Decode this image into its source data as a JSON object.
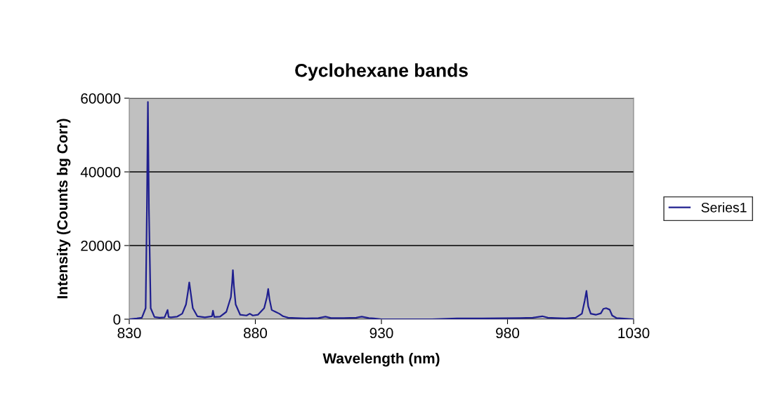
{
  "chart_data": {
    "type": "line",
    "title": "Cyclohexane bands",
    "xlabel": "Wavelength (nm)",
    "ylabel": "Intensity (Counts bg Corr)",
    "xlim": [
      830,
      1030
    ],
    "xticks": [
      830,
      880,
      930,
      980,
      1030
    ],
    "ylim": [
      0,
      60000
    ],
    "yticks": [
      0,
      20000,
      40000,
      60000
    ],
    "grid": "y",
    "legend": "right",
    "marker": "none",
    "line_style": "solid",
    "series": [
      {
        "name": "Series1",
        "color": "#1f1f8f",
        "x": [
          830,
          833,
          835,
          836.5,
          837.0,
          837.4,
          837.8,
          838.5,
          840,
          842,
          844,
          845.2,
          845.6,
          846.5,
          849,
          851,
          852.5,
          853.3,
          853.8,
          854.3,
          855.2,
          857,
          860,
          862.8,
          863.2,
          863.7,
          866,
          868.5,
          870.3,
          870.8,
          871.1,
          871.5,
          872.2,
          874,
          876.5,
          877.8,
          879,
          881,
          883.5,
          884.6,
          885.1,
          885.6,
          886.5,
          888,
          889.5,
          891,
          893,
          896,
          900,
          905,
          907.8,
          910,
          915,
          920,
          922.2,
          925,
          927,
          930,
          950,
          960,
          970,
          985,
          990,
          993.8,
          996,
          999,
          1003,
          1007,
          1009.5,
          1010.6,
          1011.3,
          1012,
          1013,
          1015,
          1017,
          1018,
          1019.1,
          1020.5,
          1021.5,
          1023.3,
          1030
        ],
        "values": [
          0,
          200,
          400,
          3000,
          30000,
          59000,
          30000,
          3000,
          600,
          400,
          500,
          2500,
          600,
          500,
          700,
          1500,
          4000,
          7500,
          10000,
          7500,
          3000,
          800,
          500,
          800,
          2300,
          600,
          700,
          2000,
          6000,
          10000,
          13300,
          9000,
          4000,
          1200,
          1000,
          1500,
          1000,
          1200,
          3000,
          6000,
          8200,
          5500,
          2500,
          2000,
          1500,
          800,
          400,
          300,
          200,
          300,
          700,
          300,
          300,
          400,
          700,
          300,
          200,
          0,
          0,
          200,
          200,
          300,
          400,
          800,
          400,
          300,
          200,
          400,
          1500,
          5000,
          7700,
          3500,
          1500,
          1200,
          1600,
          2800,
          3000,
          2600,
          1000,
          300,
          0
        ]
      }
    ]
  }
}
